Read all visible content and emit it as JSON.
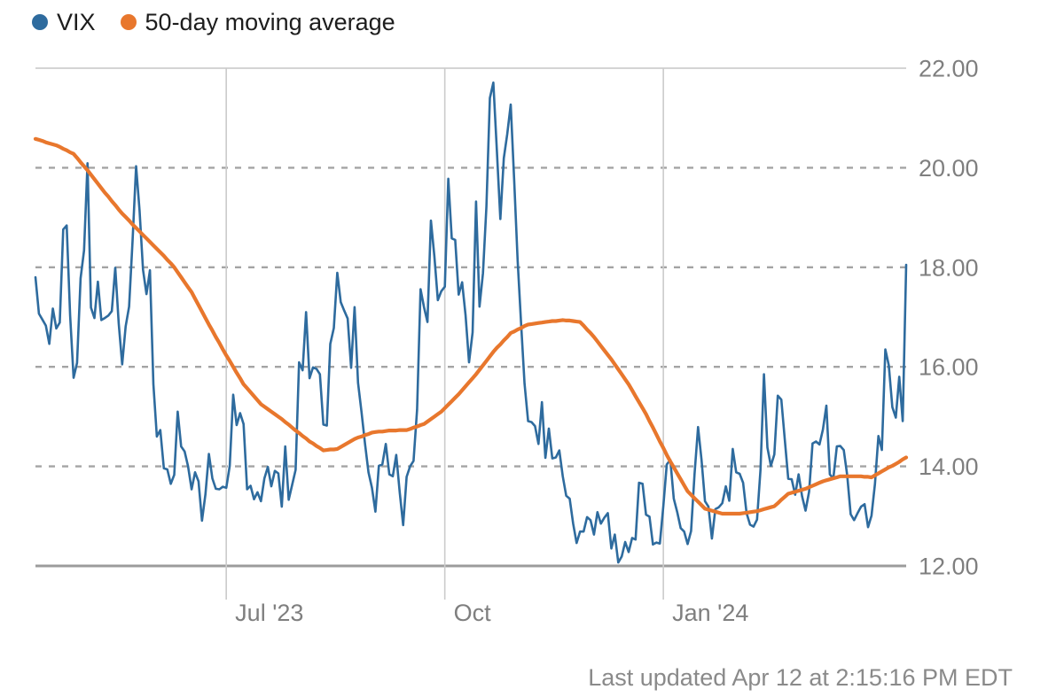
{
  "page": {
    "background": "#ffffff"
  },
  "legend": {
    "items": [
      {
        "label": "VIX",
        "color": "#2E6B9E"
      },
      {
        "label": "50-day moving average",
        "color": "#E8772D"
      }
    ]
  },
  "footer": {
    "last_updated": "Last updated Apr 12 at 2:15:16 PM EDT"
  },
  "chart_data": {
    "type": "line",
    "title": "",
    "xlabel": "",
    "ylabel": "",
    "grid": true,
    "legend_position": "top-left",
    "ylim": [
      12,
      22
    ],
    "y_ticks": [
      {
        "value": 22,
        "label": "22.00",
        "style": "solid-light"
      },
      {
        "value": 20,
        "label": "20.00",
        "style": "dashed"
      },
      {
        "value": 18,
        "label": "18.00",
        "style": "dashed"
      },
      {
        "value": 16,
        "label": "16.00",
        "style": "dashed"
      },
      {
        "value": 14,
        "label": "14.00",
        "style": "dashed"
      },
      {
        "value": 12,
        "label": "12.00",
        "style": "solid-dark"
      }
    ],
    "x_ticks": [
      {
        "label": "Jul '23",
        "date": "2023-07-03"
      },
      {
        "label": "Oct",
        "date": "2023-10-02"
      },
      {
        "label": "Jan '24",
        "date": "2024-01-02"
      }
    ],
    "x": [
      "2023-04-13",
      "2023-04-14",
      "2023-04-17",
      "2023-04-18",
      "2023-04-19",
      "2023-04-20",
      "2023-04-21",
      "2023-04-24",
      "2023-04-25",
      "2023-04-26",
      "2023-04-27",
      "2023-04-28",
      "2023-05-01",
      "2023-05-02",
      "2023-05-03",
      "2023-05-04",
      "2023-05-05",
      "2023-05-08",
      "2023-05-09",
      "2023-05-10",
      "2023-05-11",
      "2023-05-12",
      "2023-05-15",
      "2023-05-16",
      "2023-05-17",
      "2023-05-18",
      "2023-05-19",
      "2023-05-22",
      "2023-05-23",
      "2023-05-24",
      "2023-05-25",
      "2023-05-26",
      "2023-05-30",
      "2023-05-31",
      "2023-06-01",
      "2023-06-02",
      "2023-06-05",
      "2023-06-06",
      "2023-06-07",
      "2023-06-08",
      "2023-06-09",
      "2023-06-12",
      "2023-06-13",
      "2023-06-14",
      "2023-06-15",
      "2023-06-16",
      "2023-06-20",
      "2023-06-21",
      "2023-06-22",
      "2023-06-23",
      "2023-06-26",
      "2023-06-27",
      "2023-06-28",
      "2023-06-29",
      "2023-06-30",
      "2023-07-03",
      "2023-07-05",
      "2023-07-06",
      "2023-07-07",
      "2023-07-10",
      "2023-07-11",
      "2023-07-12",
      "2023-07-13",
      "2023-07-14",
      "2023-07-17",
      "2023-07-18",
      "2023-07-19",
      "2023-07-20",
      "2023-07-21",
      "2023-07-24",
      "2023-07-25",
      "2023-07-26",
      "2023-07-27",
      "2023-07-28",
      "2023-07-31",
      "2023-08-01",
      "2023-08-02",
      "2023-08-03",
      "2023-08-04",
      "2023-08-07",
      "2023-08-08",
      "2023-08-09",
      "2023-08-10",
      "2023-08-11",
      "2023-08-14",
      "2023-08-15",
      "2023-08-16",
      "2023-08-17",
      "2023-08-18",
      "2023-08-21",
      "2023-08-22",
      "2023-08-23",
      "2023-08-24",
      "2023-08-25",
      "2023-08-28",
      "2023-08-29",
      "2023-08-30",
      "2023-08-31",
      "2023-09-01",
      "2023-09-05",
      "2023-09-06",
      "2023-09-07",
      "2023-09-08",
      "2023-09-11",
      "2023-09-12",
      "2023-09-13",
      "2023-09-14",
      "2023-09-15",
      "2023-09-18",
      "2023-09-19",
      "2023-09-20",
      "2023-09-21",
      "2023-09-22",
      "2023-09-25",
      "2023-09-26",
      "2023-09-27",
      "2023-09-28",
      "2023-09-29",
      "2023-10-02",
      "2023-10-03",
      "2023-10-04",
      "2023-10-05",
      "2023-10-06",
      "2023-10-09",
      "2023-10-10",
      "2023-10-11",
      "2023-10-12",
      "2023-10-13",
      "2023-10-16",
      "2023-10-17",
      "2023-10-18",
      "2023-10-19",
      "2023-10-20",
      "2023-10-23",
      "2023-10-24",
      "2023-10-25",
      "2023-10-26",
      "2023-10-27",
      "2023-10-30",
      "2023-10-31",
      "2023-11-01",
      "2023-11-02",
      "2023-11-03",
      "2023-11-06",
      "2023-11-07",
      "2023-11-08",
      "2023-11-09",
      "2023-11-10",
      "2023-11-13",
      "2023-11-14",
      "2023-11-15",
      "2023-11-16",
      "2023-11-17",
      "2023-11-20",
      "2023-11-21",
      "2023-11-22",
      "2023-11-24",
      "2023-11-27",
      "2023-11-28",
      "2023-11-29",
      "2023-11-30",
      "2023-12-01",
      "2023-12-04",
      "2023-12-05",
      "2023-12-06",
      "2023-12-07",
      "2023-12-08",
      "2023-12-11",
      "2023-12-12",
      "2023-12-13",
      "2023-12-14",
      "2023-12-15",
      "2023-12-18",
      "2023-12-19",
      "2023-12-20",
      "2023-12-21",
      "2023-12-22",
      "2023-12-26",
      "2023-12-27",
      "2023-12-28",
      "2023-12-29",
      "2024-01-02",
      "2024-01-03",
      "2024-01-04",
      "2024-01-05",
      "2024-01-08",
      "2024-01-09",
      "2024-01-10",
      "2024-01-11",
      "2024-01-12",
      "2024-01-16",
      "2024-01-17",
      "2024-01-18",
      "2024-01-19",
      "2024-01-22",
      "2024-01-23",
      "2024-01-24",
      "2024-01-25",
      "2024-01-26",
      "2024-01-29",
      "2024-01-30",
      "2024-01-31",
      "2024-02-01",
      "2024-02-02",
      "2024-02-05",
      "2024-02-06",
      "2024-02-07",
      "2024-02-08",
      "2024-02-09",
      "2024-02-12",
      "2024-02-13",
      "2024-02-14",
      "2024-02-15",
      "2024-02-16",
      "2024-02-20",
      "2024-02-21",
      "2024-02-22",
      "2024-02-23",
      "2024-02-26",
      "2024-02-27",
      "2024-02-28",
      "2024-02-29",
      "2024-03-01",
      "2024-03-04",
      "2024-03-05",
      "2024-03-06",
      "2024-03-07",
      "2024-03-08",
      "2024-03-11",
      "2024-03-12",
      "2024-03-13",
      "2024-03-14",
      "2024-03-15",
      "2024-03-18",
      "2024-03-19",
      "2024-03-20",
      "2024-03-21",
      "2024-03-22",
      "2024-03-25",
      "2024-03-26",
      "2024-03-27",
      "2024-03-28",
      "2024-04-01",
      "2024-04-02",
      "2024-04-03",
      "2024-04-04",
      "2024-04-05",
      "2024-04-08",
      "2024-04-09",
      "2024-04-10",
      "2024-04-11",
      "2024-04-12"
    ],
    "series": [
      {
        "name": "VIX",
        "color": "#2E6B9E",
        "width": 2.6,
        "values": [
          17.8,
          17.07,
          16.95,
          16.83,
          16.46,
          17.17,
          16.77,
          16.89,
          18.76,
          18.84,
          17.03,
          15.78,
          16.08,
          17.78,
          18.34,
          20.09,
          17.19,
          16.98,
          17.71,
          16.94,
          16.98,
          17.03,
          17.12,
          17.99,
          16.87,
          16.05,
          16.81,
          17.21,
          18.53,
          20.03,
          19.14,
          17.95,
          17.46,
          17.94,
          15.65,
          14.6,
          14.73,
          13.96,
          13.94,
          13.65,
          13.83,
          15.1,
          14.4,
          14.3,
          14.0,
          13.54,
          13.88,
          13.7,
          12.91,
          13.44,
          14.25,
          13.76,
          13.55,
          13.54,
          13.59,
          13.57,
          14.01,
          15.44,
          14.83,
          15.07,
          14.85,
          13.54,
          13.61,
          13.34,
          13.48,
          13.3,
          13.76,
          13.99,
          13.6,
          13.91,
          13.86,
          13.19,
          14.4,
          13.33,
          13.63,
          13.93,
          16.09,
          15.93,
          17.1,
          15.77,
          15.99,
          15.96,
          15.85,
          14.84,
          14.82,
          16.46,
          16.78,
          17.89,
          17.3,
          17.13,
          16.97,
          15.98,
          17.2,
          15.68,
          15.08,
          14.45,
          13.88,
          13.57,
          13.09,
          14.01,
          14.04,
          14.45,
          13.84,
          13.8,
          14.23,
          13.48,
          12.82,
          13.79,
          14.0,
          14.11,
          15.14,
          17.56,
          17.2,
          16.9,
          18.94,
          18.22,
          17.34,
          17.52,
          17.61,
          19.78,
          18.58,
          18.55,
          17.45,
          17.7,
          17.03,
          16.09,
          16.69,
          19.32,
          17.21,
          17.88,
          19.22,
          21.4,
          21.71,
          20.37,
          18.97,
          20.19,
          20.68,
          21.27,
          19.75,
          18.14,
          16.87,
          15.66,
          14.91,
          14.89,
          14.81,
          14.45,
          15.29,
          14.17,
          14.76,
          14.16,
          14.18,
          14.32,
          13.8,
          13.41,
          13.35,
          12.85,
          12.46,
          12.69,
          12.69,
          12.98,
          12.92,
          12.63,
          13.08,
          12.85,
          12.97,
          13.06,
          12.35,
          12.63,
          12.07,
          12.19,
          12.48,
          12.28,
          12.56,
          12.53,
          13.67,
          13.65,
          13.03,
          12.99,
          12.43,
          12.47,
          12.45,
          13.2,
          14.04,
          14.13,
          13.35,
          13.08,
          12.76,
          12.69,
          12.44,
          12.7,
          13.84,
          14.79,
          14.13,
          13.3,
          13.19,
          12.55,
          13.14,
          13.18,
          13.26,
          13.6,
          13.31,
          14.35,
          13.88,
          13.85,
          13.67,
          13.06,
          12.83,
          12.79,
          12.93,
          13.93,
          15.85,
          14.38,
          14.01,
          14.24,
          15.42,
          15.34,
          14.54,
          13.75,
          13.74,
          13.43,
          13.84,
          13.4,
          13.11,
          13.49,
          14.46,
          14.5,
          14.44,
          14.74,
          15.22,
          13.84,
          13.75,
          14.4,
          14.41,
          14.33,
          13.82,
          13.04,
          12.92,
          13.06,
          13.19,
          13.24,
          12.78,
          13.01,
          13.65,
          14.61,
          14.33,
          16.35,
          16.03,
          15.19,
          14.98,
          15.8,
          14.91,
          18.05
        ]
      },
      {
        "name": "50-day moving average",
        "color": "#E8772D",
        "width": 4.2,
        "values": [
          20.58,
          20.56,
          20.54,
          20.51,
          20.49,
          20.47,
          20.45,
          20.42,
          20.38,
          20.35,
          20.31,
          20.28,
          20.2,
          20.11,
          20.03,
          19.95,
          19.86,
          19.77,
          19.68,
          19.59,
          19.5,
          19.42,
          19.33,
          19.25,
          19.16,
          19.08,
          19.01,
          18.94,
          18.86,
          18.79,
          18.72,
          18.65,
          18.58,
          18.51,
          18.44,
          18.37,
          18.3,
          18.23,
          18.15,
          18.08,
          18.0,
          17.9,
          17.8,
          17.7,
          17.6,
          17.5,
          17.37,
          17.24,
          17.11,
          16.98,
          16.85,
          16.73,
          16.6,
          16.48,
          16.35,
          16.23,
          16.12,
          16.0,
          15.88,
          15.77,
          15.65,
          15.57,
          15.49,
          15.41,
          15.33,
          15.25,
          15.2,
          15.15,
          15.1,
          15.05,
          15.0,
          14.95,
          14.89,
          14.84,
          14.78,
          14.72,
          14.67,
          14.61,
          14.56,
          14.5,
          14.46,
          14.41,
          14.37,
          14.32,
          14.33,
          14.34,
          14.34,
          14.35,
          14.39,
          14.43,
          14.47,
          14.51,
          14.55,
          14.58,
          14.6,
          14.63,
          14.65,
          14.68,
          14.69,
          14.7,
          14.7,
          14.71,
          14.72,
          14.72,
          14.72,
          14.73,
          14.73,
          14.73,
          14.75,
          14.78,
          14.8,
          14.83,
          14.85,
          14.9,
          14.95,
          15.0,
          15.05,
          15.1,
          15.17,
          15.24,
          15.31,
          15.38,
          15.45,
          15.53,
          15.61,
          15.69,
          15.77,
          15.85,
          15.94,
          16.03,
          16.12,
          16.21,
          16.3,
          16.38,
          16.45,
          16.53,
          16.6,
          16.68,
          16.71,
          16.75,
          16.78,
          16.82,
          16.85,
          16.86,
          16.87,
          16.88,
          16.89,
          16.9,
          16.91,
          16.92,
          16.92,
          16.93,
          16.94,
          16.93,
          16.93,
          16.92,
          16.91,
          16.9,
          16.83,
          16.75,
          16.68,
          16.6,
          16.51,
          16.42,
          16.33,
          16.24,
          16.15,
          16.05,
          15.95,
          15.85,
          15.75,
          15.65,
          15.53,
          15.41,
          15.29,
          15.17,
          15.05,
          14.91,
          14.78,
          14.64,
          14.5,
          14.37,
          14.23,
          14.1,
          13.98,
          13.86,
          13.74,
          13.62,
          13.5,
          13.43,
          13.36,
          13.29,
          13.22,
          13.15,
          13.13,
          13.11,
          13.09,
          13.07,
          13.05,
          13.05,
          13.05,
          13.05,
          13.05,
          13.05,
          13.06,
          13.07,
          13.08,
          13.09,
          13.1,
          13.12,
          13.14,
          13.16,
          13.18,
          13.2,
          13.26,
          13.33,
          13.39,
          13.45,
          13.47,
          13.49,
          13.51,
          13.53,
          13.55,
          13.58,
          13.61,
          13.64,
          13.67,
          13.7,
          13.72,
          13.74,
          13.76,
          13.78,
          13.8,
          13.8,
          13.8,
          13.8,
          13.8,
          13.8,
          13.8,
          13.79,
          13.79,
          13.78,
          13.82,
          13.86,
          13.9,
          13.94,
          13.98,
          14.01,
          14.05,
          14.09,
          14.14,
          14.18
        ]
      }
    ],
    "styles": {
      "gridline_solid_light": "#c6c6c6",
      "gridline_dashed": "#a4a4a4",
      "gridline_solid_dark": "#9c9c9c",
      "gridline_vertical": "#cbcbcb",
      "axis_label_color": "#7f7f7f"
    }
  }
}
